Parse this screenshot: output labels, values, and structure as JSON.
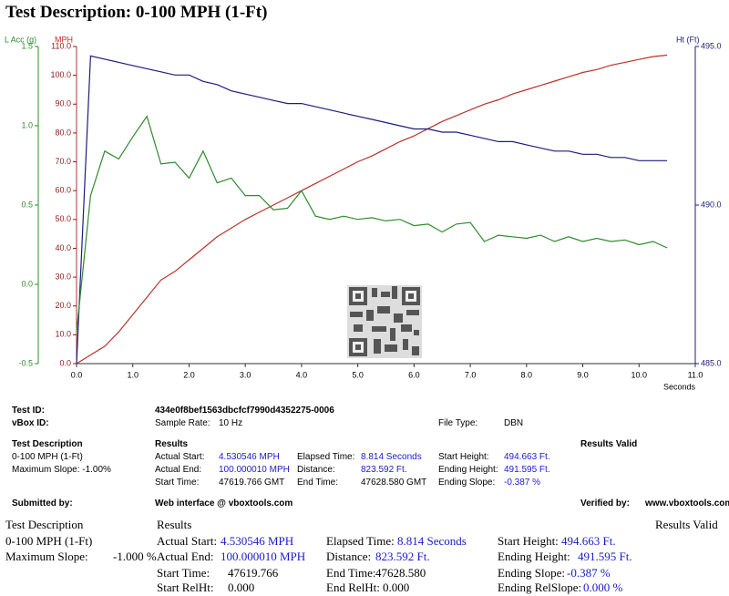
{
  "header": {
    "title": "Test Description: 0-100 MPH (1-Ft)"
  },
  "chart_data": {
    "type": "line",
    "x": [
      0,
      0.25,
      0.5,
      0.75,
      1,
      1.25,
      1.5,
      1.75,
      2,
      2.25,
      2.5,
      2.75,
      3,
      3.25,
      3.5,
      3.75,
      4,
      4.25,
      4.5,
      4.75,
      5,
      5.25,
      5.5,
      5.75,
      6,
      6.25,
      6.5,
      6.75,
      7,
      7.25,
      7.5,
      7.75,
      8,
      8.25,
      8.5,
      8.75,
      9,
      9.25,
      9.5,
      9.75,
      10,
      10.25,
      10.5
    ],
    "xlim": [
      0,
      11
    ],
    "xticks": [
      {
        "value": 0,
        "label": "0.0"
      },
      {
        "value": 1,
        "label": "1.0"
      },
      {
        "value": 2,
        "label": "2.0"
      },
      {
        "value": 3,
        "label": "3.0"
      },
      {
        "value": 4,
        "label": "4.0"
      },
      {
        "value": 5,
        "label": "5.0"
      },
      {
        "value": 6,
        "label": "6.0"
      },
      {
        "value": 7,
        "label": "7.0"
      },
      {
        "value": 8,
        "label": "8.0"
      },
      {
        "value": 9,
        "label": "9.0"
      },
      {
        "value": 10,
        "label": "10.0"
      },
      {
        "value": 11,
        "label": "11.0"
      }
    ],
    "xlabel": "Seconds",
    "ylabel": "MPH",
    "ylim": [
      0,
      110
    ],
    "yticks": [
      {
        "value": 0,
        "label": "0.0"
      },
      {
        "value": 10,
        "label": "10.0"
      },
      {
        "value": 20,
        "label": "20.0"
      },
      {
        "value": 30,
        "label": "30.0"
      },
      {
        "value": 40,
        "label": "40.0"
      },
      {
        "value": 50,
        "label": "50.0"
      },
      {
        "value": 60,
        "label": "60.0"
      },
      {
        "value": 70,
        "label": "70.0"
      },
      {
        "value": 80,
        "label": "80.0"
      },
      {
        "value": 90,
        "label": "90.0"
      },
      {
        "value": 100,
        "label": "100.0"
      },
      {
        "value": 110,
        "label": "110.0"
      }
    ],
    "y2label": "Ht (Ft)",
    "y2lim": [
      485,
      495
    ],
    "y2ticks": [
      {
        "value": 485,
        "label": "485.0"
      },
      {
        "value": 490,
        "label": "490.0"
      },
      {
        "value": 495,
        "label": "495.0"
      }
    ],
    "y3label": "L Acc (g)",
    "y3lim": [
      -0.5,
      1.5
    ],
    "y3ticks": [
      -0.5,
      {
        "value": 0,
        "label": "0.0"
      },
      0.5,
      {
        "value": 1,
        "label": "1.0"
      },
      1.5
    ],
    "series": [
      {
        "axis": "y",
        "color": "#b8322a",
        "values": [
          0,
          3,
          6,
          11,
          17,
          23,
          29,
          32,
          36,
          40,
          44,
          47,
          50,
          52.5,
          55,
          57.5,
          60,
          62.5,
          65,
          67.5,
          70,
          72,
          74.5,
          77,
          79,
          81.5,
          84,
          86,
          88,
          90,
          91.5,
          93.5,
          95,
          96.5,
          98,
          99.5,
          101,
          102,
          103.5,
          104.5,
          105.5,
          106.5,
          107
        ]
      },
      {
        "axis": "y2",
        "color": "#1c1c80",
        "values": [
          485,
          494.7,
          494.6,
          494.5,
          494.4,
          494.3,
          494.2,
          494.1,
          494.1,
          493.9,
          493.8,
          493.6,
          493.5,
          493.4,
          493.3,
          493.2,
          493.2,
          493.1,
          493.0,
          492.9,
          492.8,
          492.7,
          492.6,
          492.5,
          492.4,
          492.4,
          492.3,
          492.3,
          492.2,
          492.1,
          492.0,
          492.0,
          491.9,
          491.8,
          491.7,
          491.7,
          491.6,
          491.6,
          491.5,
          491.5,
          491.4,
          491.4,
          491.4
        ]
      },
      {
        "axis": "y3",
        "color": "#2e8b2e",
        "values": [
          -0.3,
          0.56,
          0.84,
          0.79,
          0.93,
          1.06,
          0.76,
          0.77,
          0.67,
          0.84,
          0.64,
          0.67,
          0.56,
          0.56,
          0.47,
          0.48,
          0.59,
          0.43,
          0.41,
          0.43,
          0.41,
          0.42,
          0.4,
          0.41,
          0.37,
          0.38,
          0.33,
          0.38,
          0.39,
          0.27,
          0.31,
          0.3,
          0.29,
          0.31,
          0.27,
          0.3,
          0.27,
          0.29,
          0.27,
          0.28,
          0.25,
          0.27,
          0.23
        ]
      }
    ]
  },
  "summary": {
    "rows": [
      [
        "Test ID:",
        "434e0f8bef1563dbcfcf7990d4352275-0006"
      ],
      [
        "vBox ID:",
        "Sample Rate:",
        "10 Hz",
        "File Type:",
        "DBN"
      ],
      [
        "Test Description",
        "Results",
        "Results Valid"
      ],
      [
        "0-100 MPH (1-Ft)",
        "Actual Start:",
        "4.530546 MPH",
        "Elapsed Time:",
        "8.814 Seconds",
        "Start Height:",
        "494.663 Ft."
      ],
      [
        "Maximum Slope: -1.00%",
        "Actual End:",
        "100.000010 MPH",
        "Distance:",
        "823.592 Ft.",
        "Ending Height:",
        "491.595 Ft."
      ],
      [
        "Start Time:",
        "47619.766 GMT",
        "End Time:",
        "47628.580 GMT",
        "Ending Slope:",
        "-0.387 %"
      ],
      [
        "Submitted by:",
        "Web interface @ vboxtools.com",
        "Verified by:",
        "www.vboxtools.com"
      ]
    ]
  },
  "report": {
    "rows": [
      [
        "Test Description",
        "Results",
        "Results Valid"
      ],
      [
        "0-100 MPH (1-Ft)",
        "Actual Start:",
        "4.530546 MPH",
        "Elapsed Time:",
        "8.814 Seconds",
        "Start Height:",
        "494.663 Ft."
      ],
      [
        "Maximum Slope:",
        "-1.000 %",
        "Actual End:",
        "100.000010 MPH",
        "Distance:",
        "823.592 Ft.",
        "Ending Height:",
        "491.595 Ft."
      ],
      [
        "Start Time:",
        "47619.766",
        "End Time:",
        "47628.580",
        "Ending Slope:",
        "-0.387 %"
      ],
      [
        "Start RelHt:",
        "0.000",
        "End RelHt:",
        "0.000",
        "Ending RelSlope:",
        "0.000 %"
      ]
    ]
  }
}
